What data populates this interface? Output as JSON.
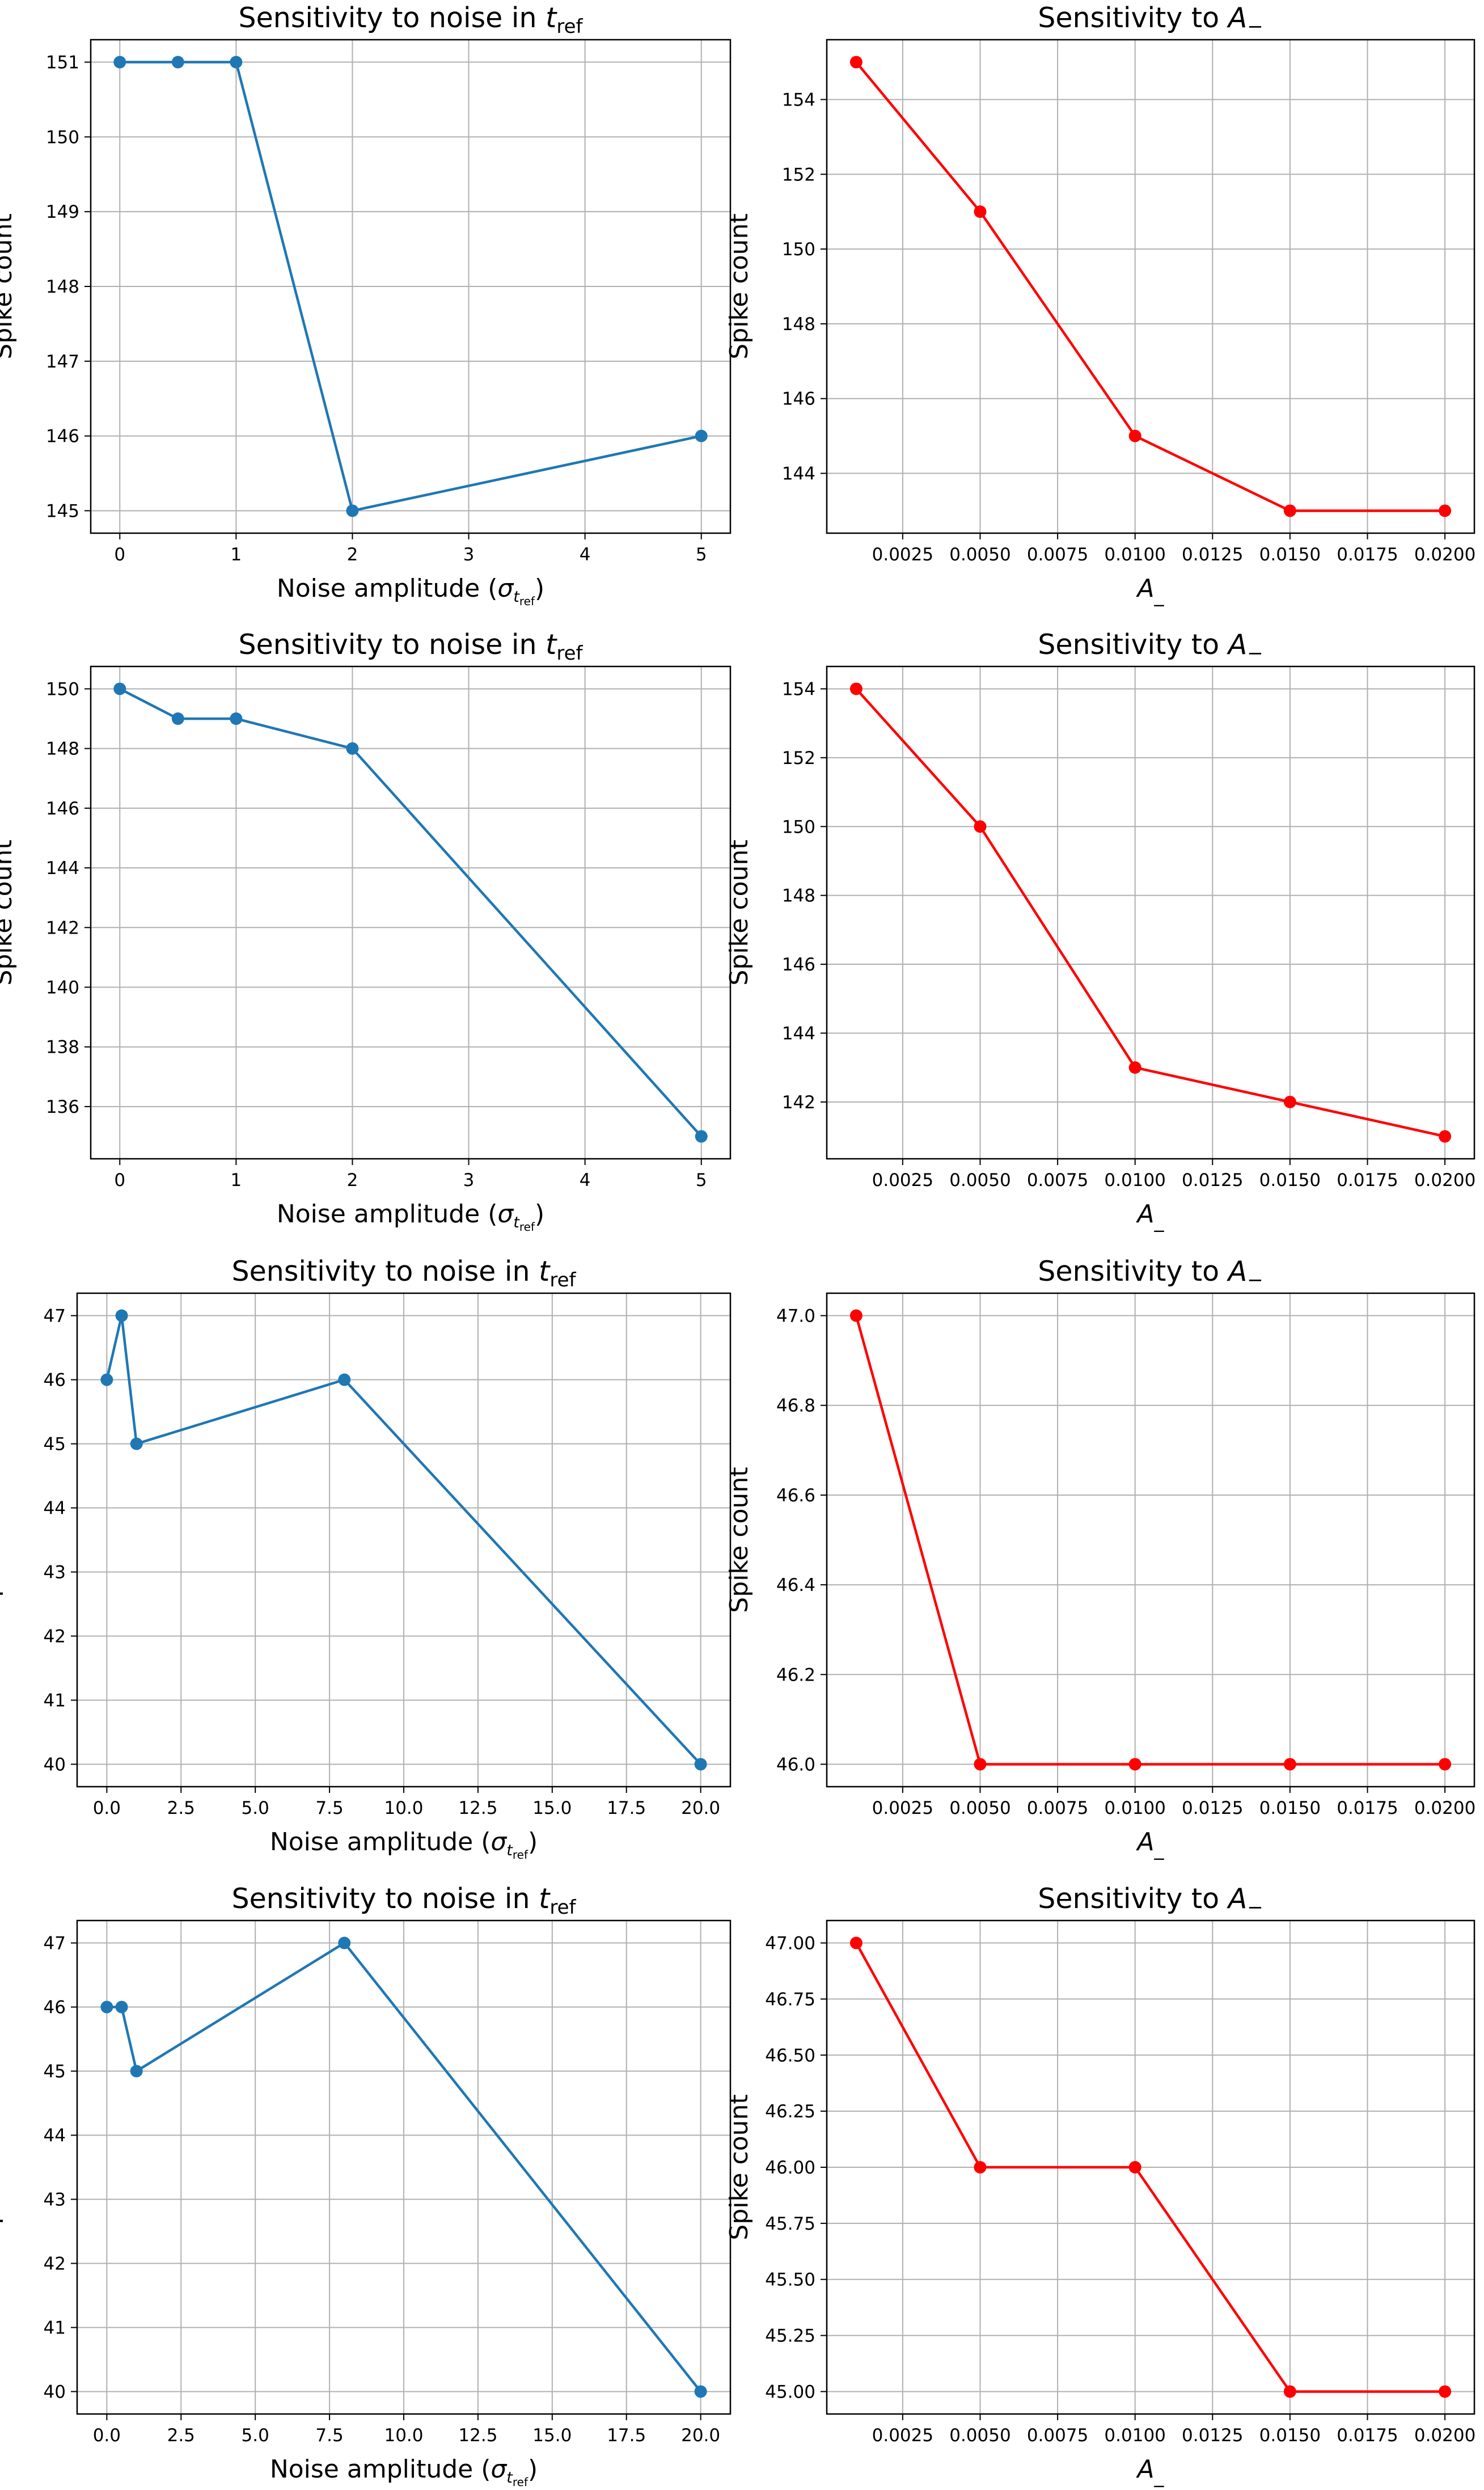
{
  "figure": {
    "panels": [
      {
        "axis_title": "Sensitivity to noise in t_ref"
      },
      {
        "axis_title": "Sensitivity to A_-"
      },
      {
        "axis_title": "Sensitivity to noise in t_ref"
      },
      {
        "axis_title": "Sensitivity to A_-"
      },
      {
        "axis_title": "Sensitivity to noise in t_ref"
      },
      {
        "axis_title": "Sensitivity to A_-"
      },
      {
        "axis_title": "Sensitivity to noise in t_ref"
      },
      {
        "axis_title": "Sensitivity to A_-"
      }
    ]
  },
  "chart_data": [
    {
      "type": "line",
      "title_text": "Sensitivity to noise in ",
      "title_math": "t",
      "title_sub": "ref",
      "xlabel_text": "Noise amplitude (",
      "xlabel_math": "σ",
      "xlabel_sub": "t",
      "xlabel_subsub": "ref",
      "xlabel_end": ")",
      "ylabel": "Spike count",
      "x": [
        0,
        0.5,
        1,
        2,
        5
      ],
      "y": [
        151,
        151,
        151,
        145,
        146
      ],
      "xlim": [
        -0.25,
        5.25
      ],
      "ylim": [
        144.7,
        151.3
      ],
      "xticks": [
        0,
        1,
        2,
        3,
        4,
        5
      ],
      "xtick_labels": [
        "0",
        "1",
        "2",
        "3",
        "4",
        "5"
      ],
      "yticks": [
        145,
        146,
        147,
        148,
        149,
        150,
        151
      ],
      "ytick_labels": [
        "145",
        "146",
        "147",
        "148",
        "149",
        "150",
        "151"
      ],
      "color": "#1f77b4",
      "grid": true
    },
    {
      "type": "line",
      "title_text": "Sensitivity to ",
      "title_math": "A",
      "title_sub": "−",
      "xlabel_text": "",
      "xlabel_math": "A",
      "xlabel_sub": "_",
      "xlabel_subsub": "",
      "xlabel_end": "",
      "ylabel": "Spike count",
      "x": [
        0.001,
        0.005,
        0.01,
        0.015,
        0.02
      ],
      "y": [
        155,
        151,
        145,
        143,
        143
      ],
      "xlim": [
        5e-05,
        0.02095
      ],
      "ylim": [
        142.4,
        155.6
      ],
      "xticks": [
        0.0025,
        0.005,
        0.0075,
        0.01,
        0.0125,
        0.015,
        0.0175,
        0.02
      ],
      "xtick_labels": [
        "0.0025",
        "0.0050",
        "0.0075",
        "0.0100",
        "0.0125",
        "0.0150",
        "0.0175",
        "0.0200"
      ],
      "yticks": [
        144,
        146,
        148,
        150,
        152,
        154
      ],
      "ytick_labels": [
        "144",
        "146",
        "148",
        "150",
        "152",
        "154"
      ],
      "color": "#ff0000",
      "grid": true
    },
    {
      "type": "line",
      "title_text": "Sensitivity to noise in ",
      "title_math": "t",
      "title_sub": "ref",
      "xlabel_text": "Noise amplitude (",
      "xlabel_math": "σ",
      "xlabel_sub": "t",
      "xlabel_subsub": "ref",
      "xlabel_end": ")",
      "ylabel": "Spike count",
      "x": [
        0,
        0.5,
        1,
        2,
        5
      ],
      "y": [
        150,
        149,
        149,
        148,
        135
      ],
      "xlim": [
        -0.25,
        5.25
      ],
      "ylim": [
        134.25,
        150.75
      ],
      "xticks": [
        0,
        1,
        2,
        3,
        4,
        5
      ],
      "xtick_labels": [
        "0",
        "1",
        "2",
        "3",
        "4",
        "5"
      ],
      "yticks": [
        136,
        138,
        140,
        142,
        144,
        146,
        148,
        150
      ],
      "ytick_labels": [
        "136",
        "138",
        "140",
        "142",
        "144",
        "146",
        "148",
        "150"
      ],
      "color": "#1f77b4",
      "grid": true
    },
    {
      "type": "line",
      "title_text": "Sensitivity to ",
      "title_math": "A",
      "title_sub": "−",
      "xlabel_text": "",
      "xlabel_math": "A",
      "xlabel_sub": "_",
      "xlabel_subsub": "",
      "xlabel_end": "",
      "ylabel": "Spike count",
      "x": [
        0.001,
        0.005,
        0.01,
        0.015,
        0.02
      ],
      "y": [
        154,
        150,
        143,
        142,
        141
      ],
      "xlim": [
        5e-05,
        0.02095
      ],
      "ylim": [
        140.35,
        154.65
      ],
      "xticks": [
        0.0025,
        0.005,
        0.0075,
        0.01,
        0.0125,
        0.015,
        0.0175,
        0.02
      ],
      "xtick_labels": [
        "0.0025",
        "0.0050",
        "0.0075",
        "0.0100",
        "0.0125",
        "0.0150",
        "0.0175",
        "0.0200"
      ],
      "yticks": [
        142,
        144,
        146,
        148,
        150,
        152,
        154
      ],
      "ytick_labels": [
        "142",
        "144",
        "146",
        "148",
        "150",
        "152",
        "154"
      ],
      "color": "#ff0000",
      "grid": true
    },
    {
      "type": "line",
      "title_text": "Sensitivity to noise in ",
      "title_math": "t",
      "title_sub": "ref",
      "xlabel_text": "Noise amplitude (",
      "xlabel_math": "σ",
      "xlabel_sub": "t",
      "xlabel_subsub": "ref",
      "xlabel_end": ")",
      "ylabel": "Spike count",
      "x": [
        0,
        0.5,
        1,
        8,
        20
      ],
      "y": [
        46,
        47,
        45,
        46,
        40
      ],
      "xlim": [
        -1.0,
        21.0
      ],
      "ylim": [
        39.65,
        47.35
      ],
      "xticks": [
        0,
        2.5,
        5,
        7.5,
        10,
        12.5,
        15,
        17.5,
        20
      ],
      "xtick_labels": [
        "0.0",
        "2.5",
        "5.0",
        "7.5",
        "10.0",
        "12.5",
        "15.0",
        "17.5",
        "20.0"
      ],
      "yticks": [
        40,
        41,
        42,
        43,
        44,
        45,
        46,
        47
      ],
      "ytick_labels": [
        "40",
        "41",
        "42",
        "43",
        "44",
        "45",
        "46",
        "47"
      ],
      "color": "#1f77b4",
      "grid": true
    },
    {
      "type": "line",
      "title_text": "Sensitivity to ",
      "title_math": "A",
      "title_sub": "−",
      "xlabel_text": "",
      "xlabel_math": "A",
      "xlabel_sub": "_",
      "xlabel_subsub": "",
      "xlabel_end": "",
      "ylabel": "Spike count",
      "x": [
        0.001,
        0.005,
        0.01,
        0.015,
        0.02
      ],
      "y": [
        47,
        46,
        46,
        46,
        46
      ],
      "xlim": [
        5e-05,
        0.02095
      ],
      "ylim": [
        45.95,
        47.05
      ],
      "xticks": [
        0.0025,
        0.005,
        0.0075,
        0.01,
        0.0125,
        0.015,
        0.0175,
        0.02
      ],
      "xtick_labels": [
        "0.0025",
        "0.0050",
        "0.0075",
        "0.0100",
        "0.0125",
        "0.0150",
        "0.0175",
        "0.0200"
      ],
      "yticks": [
        46.0,
        46.2,
        46.4,
        46.6,
        46.8,
        47.0
      ],
      "ytick_labels": [
        "46.0",
        "46.2",
        "46.4",
        "46.6",
        "46.8",
        "47.0"
      ],
      "color": "#ff0000",
      "grid": true
    },
    {
      "type": "line",
      "title_text": "Sensitivity to noise in ",
      "title_math": "t",
      "title_sub": "ref",
      "xlabel_text": "Noise amplitude (",
      "xlabel_math": "σ",
      "xlabel_sub": "t",
      "xlabel_subsub": "ref",
      "xlabel_end": ")",
      "ylabel": "Spike count",
      "x": [
        0,
        0.5,
        1,
        8,
        20
      ],
      "y": [
        46,
        46,
        45,
        47,
        40
      ],
      "xlim": [
        -1.0,
        21.0
      ],
      "ylim": [
        39.65,
        47.35
      ],
      "xticks": [
        0,
        2.5,
        5,
        7.5,
        10,
        12.5,
        15,
        17.5,
        20
      ],
      "xtick_labels": [
        "0.0",
        "2.5",
        "5.0",
        "7.5",
        "10.0",
        "12.5",
        "15.0",
        "17.5",
        "20.0"
      ],
      "yticks": [
        40,
        41,
        42,
        43,
        44,
        45,
        46,
        47
      ],
      "ytick_labels": [
        "40",
        "41",
        "42",
        "43",
        "44",
        "45",
        "46",
        "47"
      ],
      "color": "#1f77b4",
      "grid": true
    },
    {
      "type": "line",
      "title_text": "Sensitivity to ",
      "title_math": "A",
      "title_sub": "−",
      "xlabel_text": "",
      "xlabel_math": "A",
      "xlabel_sub": "_",
      "xlabel_subsub": "",
      "xlabel_end": "",
      "ylabel": "Spike count",
      "x": [
        0.001,
        0.005,
        0.01,
        0.015,
        0.02
      ],
      "y": [
        47,
        46,
        46,
        45,
        45
      ],
      "xlim": [
        5e-05,
        0.02095
      ],
      "ylim": [
        44.9,
        47.1
      ],
      "xticks": [
        0.0025,
        0.005,
        0.0075,
        0.01,
        0.0125,
        0.015,
        0.0175,
        0.02
      ],
      "xtick_labels": [
        "0.0025",
        "0.0050",
        "0.0075",
        "0.0100",
        "0.0125",
        "0.0150",
        "0.0175",
        "0.0200"
      ],
      "yticks": [
        45.0,
        45.25,
        45.5,
        45.75,
        46.0,
        46.25,
        46.5,
        46.75,
        47.0
      ],
      "ytick_labels": [
        "45.00",
        "45.25",
        "45.50",
        "45.75",
        "46.00",
        "46.25",
        "46.50",
        "46.75",
        "47.00"
      ],
      "color": "#ff0000",
      "grid": true
    }
  ]
}
